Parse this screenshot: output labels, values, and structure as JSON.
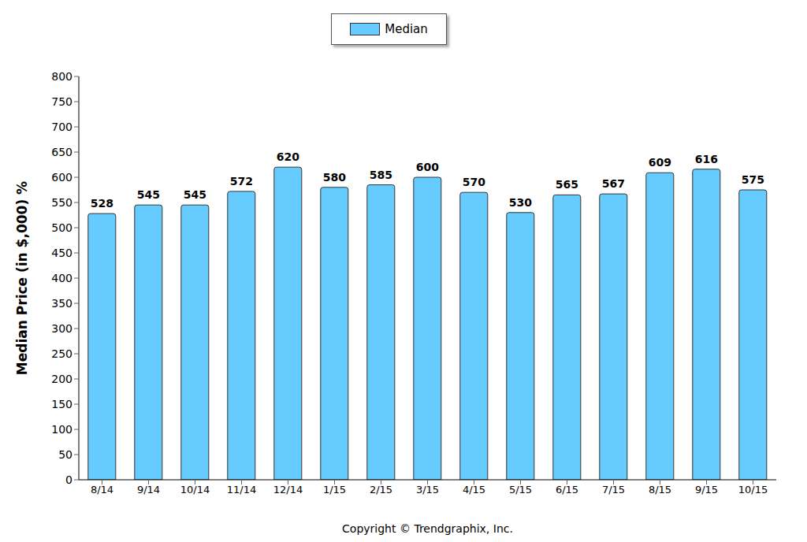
{
  "chart_data": {
    "type": "bar",
    "ylabel": "Median Price (in $,000) %",
    "xlabel": "Copyright © Trendgraphix, Inc.",
    "categories": [
      "8/14",
      "9/14",
      "10/14",
      "11/14",
      "12/14",
      "1/15",
      "2/15",
      "3/15",
      "4/15",
      "5/15",
      "6/15",
      "7/15",
      "8/15",
      "9/15",
      "10/15"
    ],
    "series": [
      {
        "name": "Median",
        "color": "#66ccff",
        "values": [
          528,
          545,
          545,
          572,
          620,
          580,
          585,
          600,
          570,
          530,
          565,
          567,
          609,
          616,
          575
        ]
      }
    ],
    "ylim": [
      0,
      800
    ],
    "yticks": [
      0,
      50,
      100,
      150,
      200,
      250,
      300,
      350,
      400,
      450,
      500,
      550,
      600,
      650,
      700,
      750,
      800
    ],
    "grid": false,
    "legend": "top",
    "data_labels": true
  }
}
